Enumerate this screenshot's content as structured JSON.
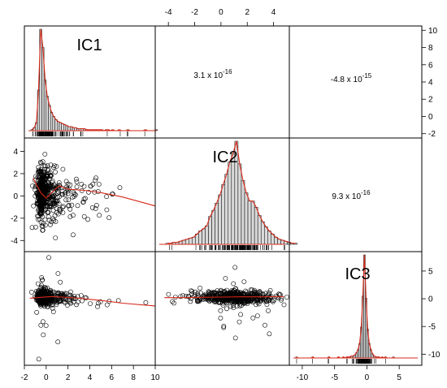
{
  "chart_data": {
    "type": "scatter",
    "layout": "pairs-matrix",
    "variables": [
      "IC1",
      "IC2",
      "IC3"
    ],
    "colors": {
      "frame": "#000000",
      "hist_bar": "#d9d9d9",
      "density": "#d62818",
      "smooth": "#d62818",
      "points": "#000000"
    },
    "axes": {
      "IC1": {
        "range": [
          -2,
          10
        ],
        "ticks": [
          -2,
          0,
          2,
          4,
          6,
          8,
          10
        ],
        "tick_labels": [
          "-2",
          "0",
          "2",
          "4",
          "6",
          "8",
          "10"
        ]
      },
      "IC2": {
        "range": [
          -5,
          5.2
        ],
        "ticks": [
          -4,
          -2,
          0,
          2,
          4
        ],
        "tick_labels": [
          "-4",
          "-2",
          "0",
          "2",
          "4"
        ]
      },
      "IC3": {
        "range": [
          -12,
          8.5
        ],
        "ticks": [
          -10,
          -5,
          0,
          5
        ],
        "tick_labels": [
          "-10",
          "-5",
          "0",
          "5"
        ]
      }
    },
    "hist_y_ticks": [
      -2,
      0,
      2,
      4,
      6,
      8,
      10
    ],
    "hist_y_tick_labels": [
      "-2",
      "0",
      "2",
      "4",
      "6",
      "8",
      "10"
    ],
    "correlations": [
      {
        "pair": [
          "IC1",
          "IC2"
        ],
        "mantissa": "3.1 x 10",
        "exponent": "-16"
      },
      {
        "pair": [
          "IC1",
          "IC3"
        ],
        "mantissa": "-4.8 x 10",
        "exponent": "-15"
      },
      {
        "pair": [
          "IC2",
          "IC3"
        ],
        "mantissa": "9.3 x 10",
        "exponent": "-16"
      }
    ],
    "histograms": {
      "IC1": {
        "bin_start": -1.4,
        "bin_width": 0.2,
        "heights": [
          1,
          3,
          8,
          40,
          100,
          82,
          50,
          34,
          25,
          18,
          14,
          11,
          9,
          8,
          7,
          6,
          5,
          4,
          4,
          3,
          3,
          2,
          2,
          2,
          2,
          1,
          1,
          1,
          1,
          1,
          1,
          1,
          1,
          0,
          1,
          1,
          0,
          1,
          0,
          0,
          1,
          0,
          0,
          0,
          1,
          0,
          0,
          0,
          0,
          0,
          0,
          0,
          1,
          0,
          0,
          0,
          0,
          1
        ]
      },
      "IC2": {
        "bin_start": -4.2,
        "bin_width": 0.25,
        "heights": [
          1,
          1,
          2,
          2,
          3,
          4,
          5,
          6,
          7,
          10,
          13,
          15,
          18,
          27,
          33,
          40,
          48,
          58,
          68,
          80,
          88,
          100,
          78,
          62,
          50,
          42,
          42,
          36,
          28,
          22,
          17,
          13,
          10,
          7,
          5,
          4,
          3,
          2,
          1,
          1
        ]
      },
      "IC3": {
        "bin_start": -11,
        "bin_width": 0.25,
        "heights": [
          1,
          0,
          0,
          0,
          0,
          0,
          0,
          0,
          0,
          0,
          1,
          0,
          0,
          0,
          0,
          0,
          0,
          0,
          0,
          0,
          1,
          0,
          0,
          0,
          0,
          0,
          1,
          0,
          0,
          1,
          0,
          1,
          1,
          1,
          2,
          2,
          3,
          5,
          8,
          14,
          30,
          60,
          100,
          58,
          28,
          14,
          8,
          4,
          2,
          1,
          1,
          1,
          0,
          1,
          0,
          1,
          0,
          0,
          0,
          0,
          1
        ]
      }
    },
    "smooth_lines": {
      "IC2_vs_IC1": {
        "x": [
          -1.2,
          -0.5,
          0,
          0.6,
          1.2,
          2,
          3.5,
          5,
          7,
          10
        ],
        "y": [
          1.6,
          0.3,
          -0.2,
          0.4,
          0.9,
          0.6,
          0.5,
          0.3,
          -0.1,
          -0.9
        ]
      },
      "IC3_vs_IC1": {
        "x": [
          -1.5,
          -0.5,
          0.5,
          1.5,
          3,
          5,
          7,
          10
        ],
        "y": [
          0.1,
          0.25,
          0.4,
          0.3,
          0.1,
          -0.3,
          -0.8,
          -1.3
        ]
      },
      "IC3_vs_IC2": {
        "x": [
          -4.3,
          -3,
          -1.5,
          0,
          1.5,
          3,
          4.8
        ],
        "y": [
          0.2,
          0.2,
          0.25,
          0.3,
          0.35,
          0.35,
          0.4
        ]
      }
    }
  }
}
